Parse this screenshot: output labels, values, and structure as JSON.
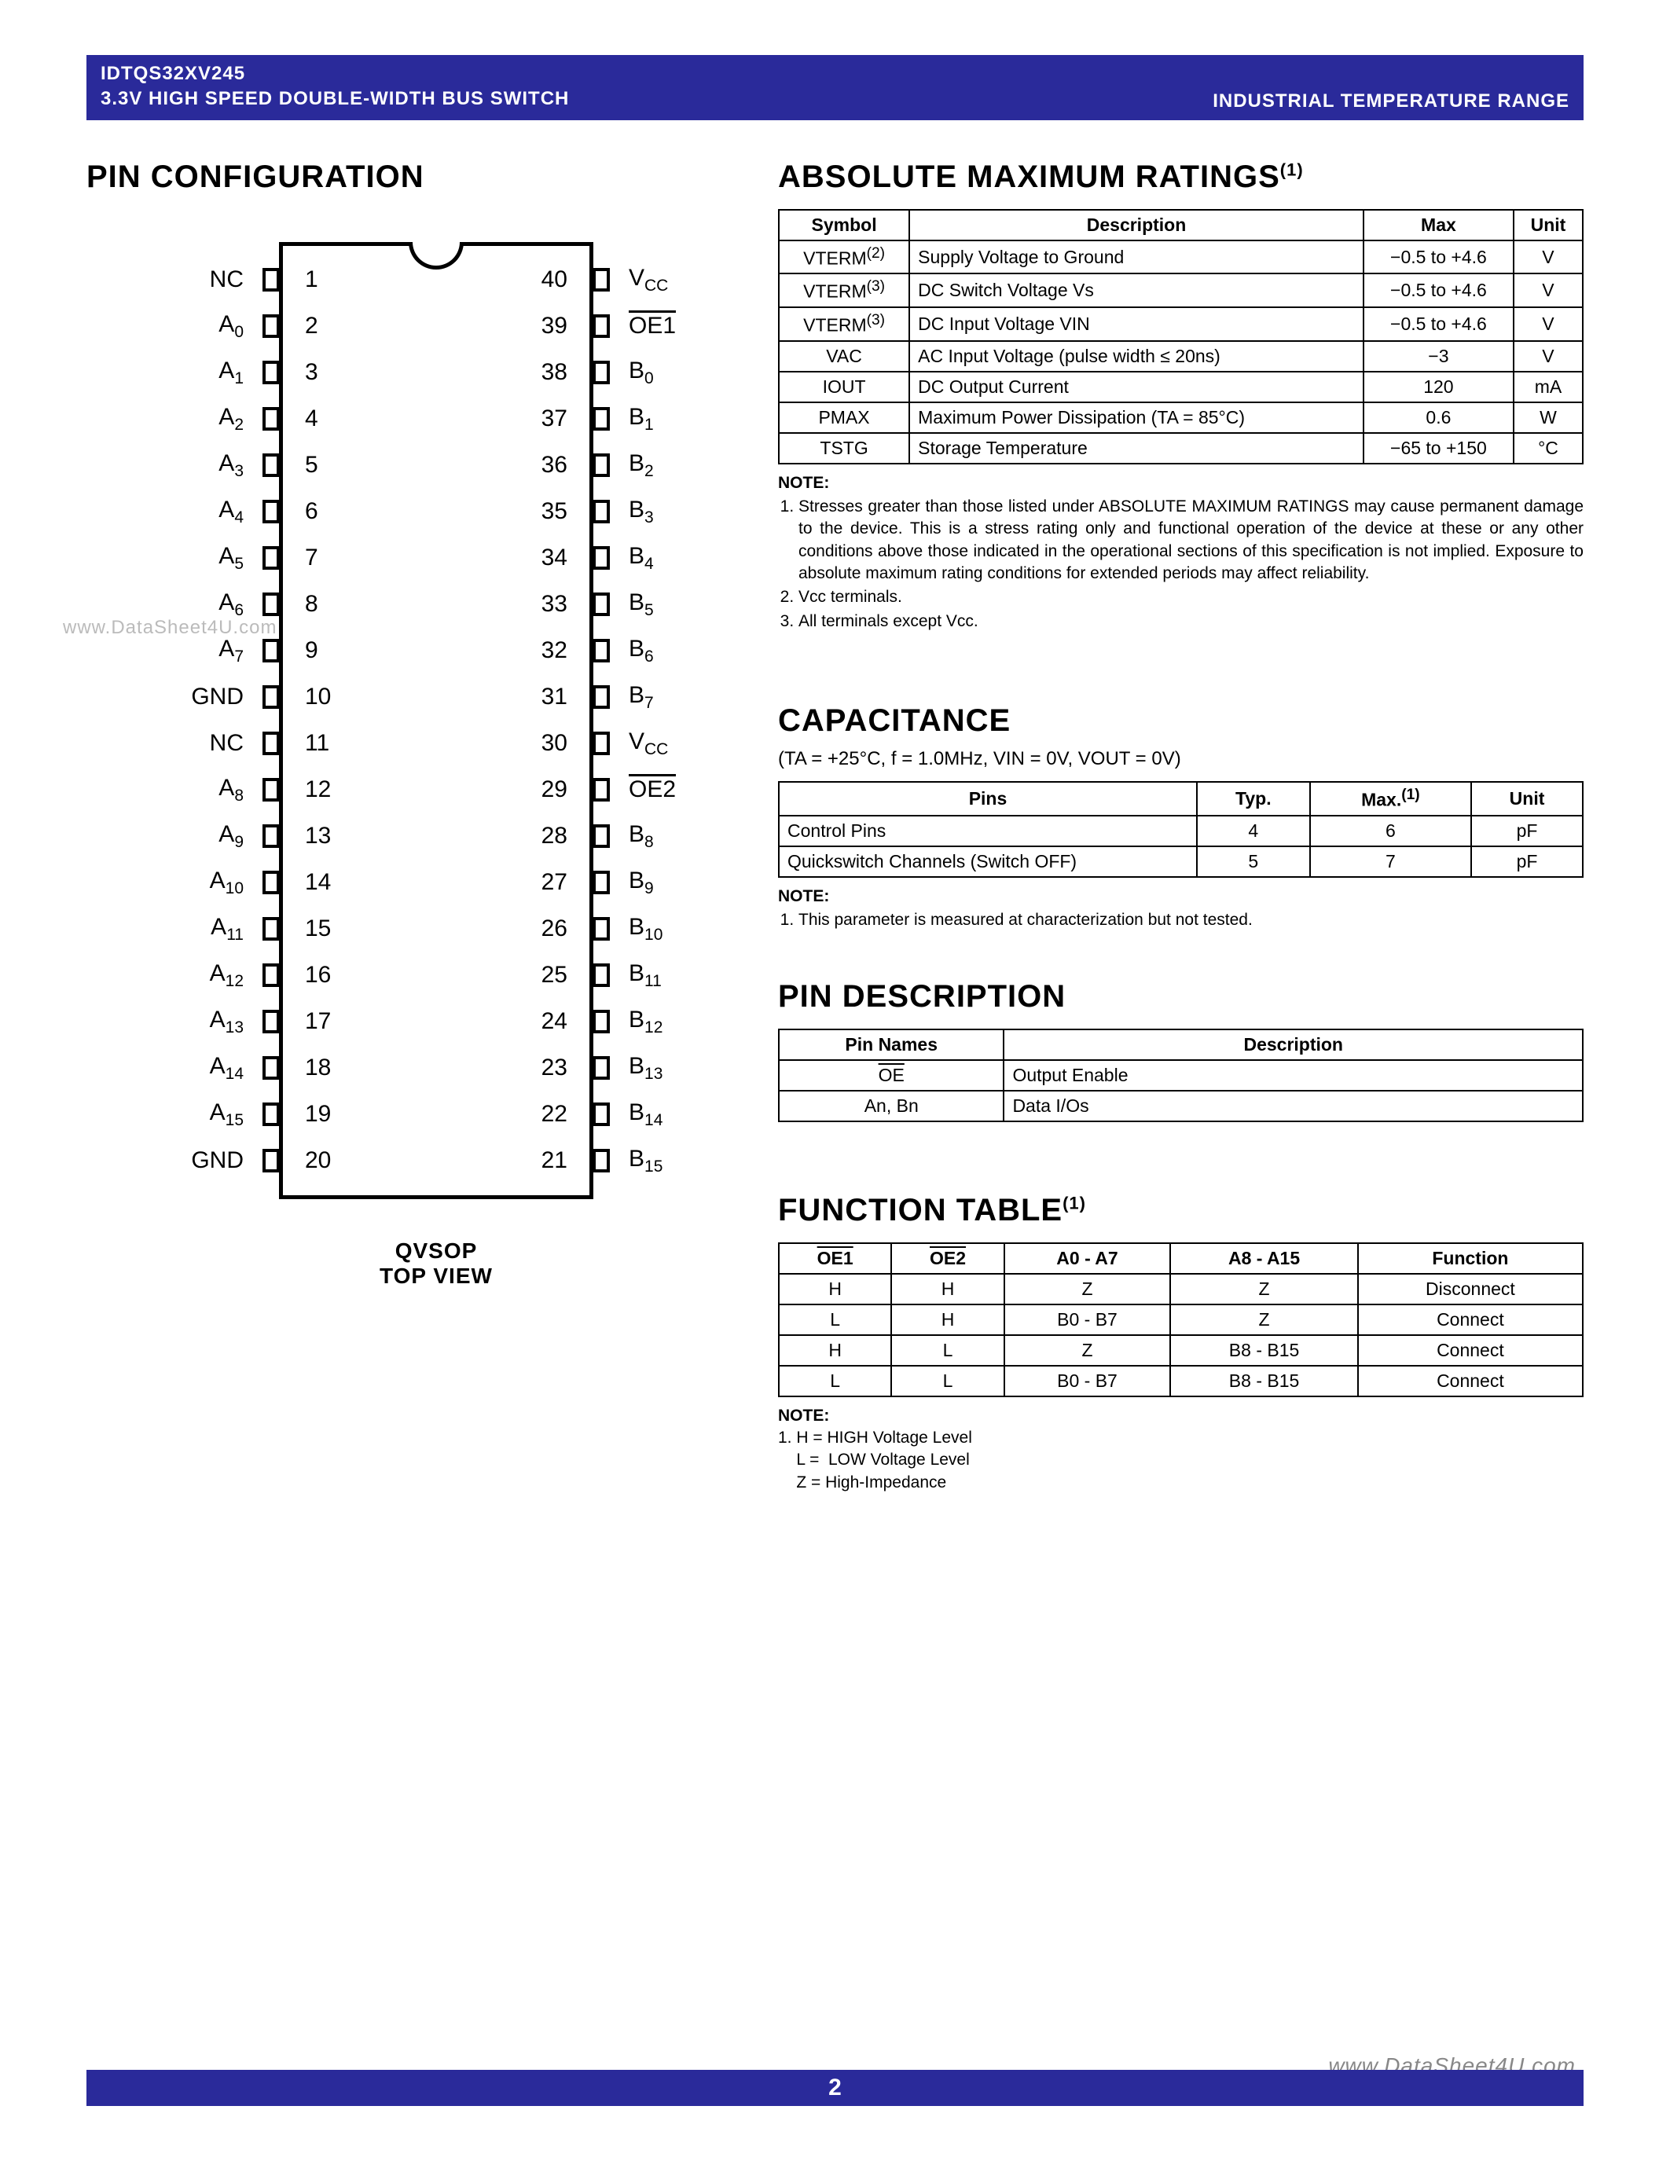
{
  "header": {
    "line1": "IDTQS32XV245",
    "line2": "3.3V HIGH SPEED DOUBLE-WIDTH BUS SWITCH",
    "right": "INDUSTRIAL TEMPERATURE RANGE"
  },
  "pinconfig": {
    "title": "PIN CONFIGURATION",
    "caption1": "QVSOP",
    "caption2": "TOP VIEW",
    "left_pins": [
      {
        "n": "1",
        "label": "NC"
      },
      {
        "n": "2",
        "label": "A",
        "sub": "0"
      },
      {
        "n": "3",
        "label": "A",
        "sub": "1"
      },
      {
        "n": "4",
        "label": "A",
        "sub": "2"
      },
      {
        "n": "5",
        "label": "A",
        "sub": "3"
      },
      {
        "n": "6",
        "label": "A",
        "sub": "4"
      },
      {
        "n": "7",
        "label": "A",
        "sub": "5"
      },
      {
        "n": "8",
        "label": "A",
        "sub": "6"
      },
      {
        "n": "9",
        "label": "A",
        "sub": "7"
      },
      {
        "n": "10",
        "label": "GND"
      },
      {
        "n": "11",
        "label": "NC"
      },
      {
        "n": "12",
        "label": "A",
        "sub": "8"
      },
      {
        "n": "13",
        "label": "A",
        "sub": "9"
      },
      {
        "n": "14",
        "label": "A",
        "sub": "10"
      },
      {
        "n": "15",
        "label": "A",
        "sub": "11"
      },
      {
        "n": "16",
        "label": "A",
        "sub": "12"
      },
      {
        "n": "17",
        "label": "A",
        "sub": "13"
      },
      {
        "n": "18",
        "label": "A",
        "sub": "14"
      },
      {
        "n": "19",
        "label": "A",
        "sub": "15"
      },
      {
        "n": "20",
        "label": "GND"
      }
    ],
    "right_pins": [
      {
        "n": "40",
        "label": "V",
        "sub": "CC"
      },
      {
        "n": "39",
        "label": "OE1",
        "over": true
      },
      {
        "n": "38",
        "label": "B",
        "sub": "0"
      },
      {
        "n": "37",
        "label": "B",
        "sub": "1"
      },
      {
        "n": "36",
        "label": "B",
        "sub": "2"
      },
      {
        "n": "35",
        "label": "B",
        "sub": "3"
      },
      {
        "n": "34",
        "label": "B",
        "sub": "4"
      },
      {
        "n": "33",
        "label": "B",
        "sub": "5"
      },
      {
        "n": "32",
        "label": "B",
        "sub": "6"
      },
      {
        "n": "31",
        "label": "B",
        "sub": "7"
      },
      {
        "n": "30",
        "label": "V",
        "sub": "CC"
      },
      {
        "n": "29",
        "label": "OE2",
        "over": true
      },
      {
        "n": "28",
        "label": "B",
        "sub": "8"
      },
      {
        "n": "27",
        "label": "B",
        "sub": "9"
      },
      {
        "n": "26",
        "label": "B",
        "sub": "10"
      },
      {
        "n": "25",
        "label": "B",
        "sub": "11"
      },
      {
        "n": "24",
        "label": "B",
        "sub": "12"
      },
      {
        "n": "23",
        "label": "B",
        "sub": "13"
      },
      {
        "n": "22",
        "label": "B",
        "sub": "14"
      },
      {
        "n": "21",
        "label": "B",
        "sub": "15"
      }
    ]
  },
  "amr": {
    "title": "ABSOLUTE MAXIMUM RATINGS",
    "title_sup": "(1)",
    "head": [
      "Symbol",
      "Description",
      "Max",
      "Unit"
    ],
    "rows": [
      {
        "sym": "VTERM",
        "sup": "(2)",
        "desc": "Supply Voltage to Ground",
        "max": "−0.5 to +4.6",
        "unit": "V"
      },
      {
        "sym": "VTERM",
        "sup": "(3)",
        "desc": "DC Switch Voltage Vs",
        "max": "−0.5 to +4.6",
        "unit": "V"
      },
      {
        "sym": "VTERM",
        "sup": "(3)",
        "desc": "DC Input Voltage VIN",
        "max": "−0.5 to +4.6",
        "unit": "V"
      },
      {
        "sym": "VAC",
        "desc": "AC Input Voltage (pulse width ≤ 20ns)",
        "max": "−3",
        "unit": "V"
      },
      {
        "sym": "IOUT",
        "desc": "DC Output Current",
        "max": "120",
        "unit": "mA"
      },
      {
        "sym": "PMAX",
        "desc": "Maximum Power Dissipation (TA = 85°C)",
        "max": "0.6",
        "unit": "W"
      },
      {
        "sym": "TSTG",
        "desc": "Storage Temperature",
        "max": "−65 to +150",
        "unit": "°C"
      }
    ],
    "note_label": "NOTE:",
    "notes": [
      "Stresses greater than those listed under ABSOLUTE MAXIMUM RATINGS may cause permanent damage to the device. This is a stress rating only and functional operation of the device at these or any other conditions above those indicated in the operational sections of this specification is not implied. Exposure to absolute maximum rating conditions for extended periods may affect reliability.",
      "Vcc terminals.",
      "All terminals except Vcc."
    ]
  },
  "cap": {
    "title": "CAPACITANCE",
    "cond": "(TA = +25°C, f = 1.0MHz, VIN = 0V, VOUT = 0V)",
    "head": [
      "Pins",
      "Typ.",
      "Max.",
      "Unit"
    ],
    "head_sup": "(1)",
    "rows": [
      [
        "Control Pins",
        "4",
        "6",
        "pF"
      ],
      [
        "Quickswitch Channels (Switch OFF)",
        "5",
        "7",
        "pF"
      ]
    ],
    "note_label": "NOTE:",
    "notes": [
      "This parameter is measured at characterization but not tested."
    ]
  },
  "pindesc": {
    "title": "PIN DESCRIPTION",
    "head": [
      "Pin Names",
      "Description"
    ],
    "rows": [
      {
        "name": "OE",
        "over": true,
        "desc": "Output Enable"
      },
      {
        "name": "An, Bn",
        "desc": "Data I/Os"
      }
    ]
  },
  "func": {
    "title": "FUNCTION TABLE",
    "title_sup": "(1)",
    "head": [
      "OE1",
      "OE2",
      "A0 - A7",
      "A8 - A15",
      "Function"
    ],
    "head_over": [
      true,
      true,
      false,
      false,
      false
    ],
    "rows": [
      [
        "H",
        "H",
        "Z",
        "Z",
        "Disconnect"
      ],
      [
        "L",
        "H",
        "B0 - B7",
        "Z",
        "Connect"
      ],
      [
        "H",
        "L",
        "Z",
        "B8 - B15",
        "Connect"
      ],
      [
        "L",
        "L",
        "B0 - B7",
        "B8 - B15",
        "Connect"
      ]
    ],
    "note_label": "NOTE:",
    "note_lines": [
      "1. H = HIGH Voltage Level",
      "    L =  LOW Voltage Level",
      "    Z = High-Impedance"
    ]
  },
  "footer": {
    "page": "2"
  },
  "watermarks": {
    "left": "www.DataSheet4U.com",
    "right": "www.DataSheet4U.com"
  }
}
